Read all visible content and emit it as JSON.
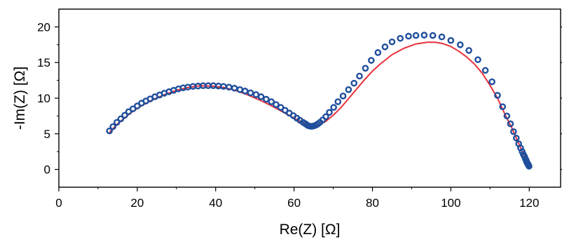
{
  "chart_data": {
    "type": "scatter",
    "xlabel": "Re(Z) [Ω]",
    "ylabel": "-Im(Z) [Ω]",
    "xlim": [
      0,
      128
    ],
    "ylim": [
      -2.5,
      22.5
    ],
    "x_ticks": [
      0,
      20,
      40,
      60,
      80,
      100,
      120
    ],
    "y_ticks": [
      0,
      5,
      10,
      15,
      20
    ],
    "grid": false,
    "legend": "none",
    "marker_color": "#1f4e9c",
    "line_color": "#e8303a",
    "series": [
      {
        "kind": "markers",
        "x": [
          12.9,
          13.8,
          14.8,
          15.8,
          16.8,
          17.8,
          18.9,
          20.0,
          21.1,
          22.2,
          23.3,
          24.5,
          25.7,
          26.9,
          28.1,
          29.3,
          30.5,
          31.7,
          32.9,
          34.2,
          35.5,
          36.8,
          38.1,
          39.4,
          40.7,
          42.0,
          43.4,
          44.8,
          46.2,
          47.5,
          48.9,
          50.3,
          51.6,
          52.9,
          54.2,
          55.4,
          56.6,
          57.7,
          58.8,
          59.8,
          60.7,
          61.5,
          62.3,
          62.9,
          63.4,
          63.8,
          64.2,
          64.6,
          65.0,
          65.5,
          66.0,
          66.6,
          67.3,
          68.1,
          69.0,
          70.1,
          71.2,
          72.5,
          73.9,
          75.3,
          76.7,
          78.2,
          79.7,
          81.4,
          83.2,
          85.0,
          87.1,
          89.2,
          91.1,
          93.2,
          95.4,
          97.7,
          100.0,
          102.4,
          104.6,
          106.9,
          108.8,
          110.5,
          111.9,
          113.2,
          114.3,
          115.2,
          116.0,
          116.7,
          117.3,
          117.8,
          118.2,
          118.5,
          118.8,
          119.0,
          119.2,
          119.3,
          119.45,
          119.55,
          119.65,
          119.75,
          119.85,
          119.95
        ],
        "y": [
          5.4,
          6.0,
          6.6,
          7.1,
          7.6,
          8.1,
          8.5,
          8.9,
          9.3,
          9.6,
          9.9,
          10.2,
          10.45,
          10.7,
          10.9,
          11.1,
          11.3,
          11.45,
          11.55,
          11.65,
          11.7,
          11.75,
          11.75,
          11.75,
          11.7,
          11.65,
          11.55,
          11.4,
          11.2,
          11.0,
          10.75,
          10.5,
          10.2,
          9.85,
          9.5,
          9.1,
          8.7,
          8.3,
          7.9,
          7.55,
          7.2,
          6.9,
          6.6,
          6.4,
          6.2,
          6.1,
          6.05,
          6.05,
          6.1,
          6.2,
          6.35,
          6.6,
          6.95,
          7.4,
          8.0,
          8.7,
          9.5,
          10.3,
          11.2,
          12.1,
          13.1,
          14.2,
          15.3,
          16.4,
          17.2,
          17.9,
          18.4,
          18.7,
          18.8,
          18.85,
          18.8,
          18.6,
          18.1,
          17.5,
          16.7,
          15.4,
          13.9,
          12.3,
          10.4,
          8.8,
          7.5,
          6.4,
          5.3,
          4.4,
          3.6,
          3.0,
          2.5,
          2.1,
          1.8,
          1.5,
          1.3,
          1.1,
          0.95,
          0.85,
          0.75,
          0.65,
          0.55,
          0.45
        ]
      },
      {
        "kind": "fit-line",
        "x": [
          12.9,
          15,
          18,
          21,
          24,
          27,
          30,
          33,
          36,
          39,
          42,
          45,
          48,
          51,
          54,
          57,
          60,
          62,
          63.5,
          65,
          66.5,
          68,
          70,
          72,
          74,
          76,
          78,
          80,
          82,
          85,
          88,
          91,
          94,
          96,
          98,
          100,
          102,
          104,
          106,
          108,
          110,
          112,
          114,
          115.5,
          117,
          118,
          119,
          119.6,
          120.0
        ],
        "y": [
          5.2,
          6.4,
          7.8,
          8.9,
          9.8,
          10.5,
          11.1,
          11.5,
          11.75,
          11.7,
          11.5,
          11.1,
          10.5,
          9.8,
          9.0,
          8.1,
          7.2,
          6.6,
          6.3,
          6.2,
          6.3,
          6.7,
          7.6,
          8.7,
          10.0,
          11.3,
          12.6,
          13.8,
          14.8,
          16.1,
          17.0,
          17.6,
          17.85,
          17.85,
          17.65,
          17.25,
          16.6,
          15.8,
          14.8,
          13.5,
          11.8,
          9.9,
          7.5,
          5.9,
          4.0,
          2.8,
          1.8,
          1.1,
          0.6
        ]
      }
    ]
  }
}
